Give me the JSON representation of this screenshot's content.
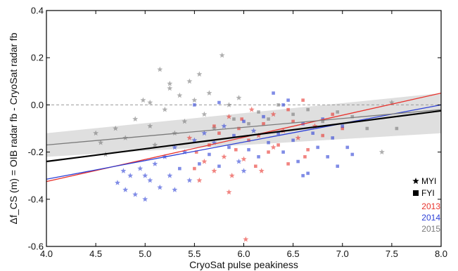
{
  "chart_data": {
    "type": "scatter",
    "xlabel": "CryoSat pulse peakiness",
    "ylabel": "Δf_CS (m) = OIB radar fb - CryoSat radar fb",
    "xlim": [
      4.0,
      8.0
    ],
    "ylim": [
      -0.6,
      0.4
    ],
    "x_ticks": [
      "4.0",
      "4.5",
      "5.0",
      "5.5",
      "6.0",
      "6.5",
      "7.0",
      "7.5",
      "8.0"
    ],
    "y_ticks": [
      "-0.6",
      "-0.4",
      "-0.2",
      "0.0",
      "0.2",
      "0.4"
    ],
    "reference_line_y": 0.0,
    "legend": {
      "placement": "lower-right",
      "marker_entries": [
        {
          "label": "MYI",
          "marker": "star-icon"
        },
        {
          "label": "FYI",
          "marker": "square-icon"
        }
      ],
      "year_entries": [
        {
          "label": "2013",
          "color": "#e8322c"
        },
        {
          "label": "2014",
          "color": "#2b3fd6"
        },
        {
          "label": "2015",
          "color": "#7a7a7a"
        }
      ]
    },
    "confidence_band": {
      "x": [
        4.0,
        8.0
      ],
      "lower": [
        -0.22,
        -0.12
      ],
      "upper": [
        -0.12,
        0.05
      ],
      "color": "#d9d9d9"
    },
    "series": [
      {
        "name": "2013",
        "color": "#e8322c",
        "fit": {
          "x": [
            4.0,
            8.0
          ],
          "y": [
            -0.325,
            0.05
          ]
        },
        "points": [
          {
            "x": 5.45,
            "y": -0.14,
            "m": "star"
          },
          {
            "x": 5.52,
            "y": -0.2,
            "m": "square"
          },
          {
            "x": 5.6,
            "y": -0.24,
            "m": "star"
          },
          {
            "x": 5.65,
            "y": -0.17,
            "m": "square"
          },
          {
            "x": 5.7,
            "y": -0.28,
            "m": "star"
          },
          {
            "x": 5.75,
            "y": -0.12,
            "m": "square"
          },
          {
            "x": 5.8,
            "y": -0.22,
            "m": "star"
          },
          {
            "x": 5.85,
            "y": -0.05,
            "m": "star"
          },
          {
            "x": 5.88,
            "y": -0.3,
            "m": "star"
          },
          {
            "x": 5.92,
            "y": -0.19,
            "m": "square"
          },
          {
            "x": 5.95,
            "y": -0.1,
            "m": "square"
          },
          {
            "x": 6.0,
            "y": -0.23,
            "m": "star"
          },
          {
            "x": 6.05,
            "y": -0.15,
            "m": "square"
          },
          {
            "x": 6.08,
            "y": -0.02,
            "m": "star"
          },
          {
            "x": 6.12,
            "y": -0.26,
            "m": "square"
          },
          {
            "x": 6.15,
            "y": -0.13,
            "m": "star"
          },
          {
            "x": 6.2,
            "y": -0.08,
            "m": "square"
          },
          {
            "x": 6.25,
            "y": -0.2,
            "m": "square"
          },
          {
            "x": 6.3,
            "y": -0.04,
            "m": "star"
          },
          {
            "x": 6.35,
            "y": -0.17,
            "m": "square"
          },
          {
            "x": 6.4,
            "y": -0.11,
            "m": "star"
          },
          {
            "x": 6.45,
            "y": -0.25,
            "m": "square"
          },
          {
            "x": 6.5,
            "y": -0.07,
            "m": "square"
          },
          {
            "x": 6.55,
            "y": -0.14,
            "m": "star"
          },
          {
            "x": 6.6,
            "y": 0.02,
            "m": "square"
          },
          {
            "x": 6.65,
            "y": -0.19,
            "m": "square"
          },
          {
            "x": 6.72,
            "y": -0.09,
            "m": "star"
          },
          {
            "x": 6.8,
            "y": -0.13,
            "m": "square"
          },
          {
            "x": 6.9,
            "y": -0.04,
            "m": "square"
          },
          {
            "x": 7.0,
            "y": -0.1,
            "m": "square"
          },
          {
            "x": 5.85,
            "y": -0.37,
            "m": "star"
          },
          {
            "x": 6.02,
            "y": -0.57,
            "m": "star"
          },
          {
            "x": 5.55,
            "y": -0.32,
            "m": "star"
          },
          {
            "x": 6.3,
            "y": -0.18,
            "m": "star"
          },
          {
            "x": 5.98,
            "y": -0.06,
            "m": "square"
          },
          {
            "x": 6.45,
            "y": -0.02,
            "m": "square"
          },
          {
            "x": 5.7,
            "y": -0.09,
            "m": "square"
          },
          {
            "x": 6.18,
            "y": -0.28,
            "m": "star"
          },
          {
            "x": 6.62,
            "y": -0.22,
            "m": "square"
          },
          {
            "x": 5.5,
            "y": -0.27,
            "m": "square"
          }
        ]
      },
      {
        "name": "2014",
        "color": "#2b3fd6",
        "fit": {
          "x": [
            4.0,
            8.0
          ],
          "y": [
            -0.315,
            0.0
          ]
        },
        "points": [
          {
            "x": 4.72,
            "y": -0.33,
            "m": "star"
          },
          {
            "x": 4.8,
            "y": -0.36,
            "m": "star"
          },
          {
            "x": 4.85,
            "y": -0.3,
            "m": "star"
          },
          {
            "x": 4.9,
            "y": -0.38,
            "m": "star"
          },
          {
            "x": 4.95,
            "y": -0.27,
            "m": "star"
          },
          {
            "x": 5.0,
            "y": -0.4,
            "m": "star"
          },
          {
            "x": 5.05,
            "y": -0.32,
            "m": "star"
          },
          {
            "x": 5.1,
            "y": -0.25,
            "m": "star"
          },
          {
            "x": 5.15,
            "y": -0.35,
            "m": "star"
          },
          {
            "x": 5.2,
            "y": -0.22,
            "m": "star"
          },
          {
            "x": 5.25,
            "y": -0.3,
            "m": "star"
          },
          {
            "x": 5.3,
            "y": -0.18,
            "m": "star"
          },
          {
            "x": 5.35,
            "y": -0.27,
            "m": "square"
          },
          {
            "x": 5.4,
            "y": -0.2,
            "m": "star"
          },
          {
            "x": 5.45,
            "y": -0.32,
            "m": "star"
          },
          {
            "x": 5.5,
            "y": -0.15,
            "m": "star"
          },
          {
            "x": 5.55,
            "y": -0.25,
            "m": "square"
          },
          {
            "x": 5.6,
            "y": -0.12,
            "m": "star"
          },
          {
            "x": 5.65,
            "y": -0.21,
            "m": "square"
          },
          {
            "x": 5.7,
            "y": -0.16,
            "m": "star"
          },
          {
            "x": 5.75,
            "y": -0.26,
            "m": "square"
          },
          {
            "x": 5.8,
            "y": -0.09,
            "m": "star"
          },
          {
            "x": 5.85,
            "y": -0.18,
            "m": "square"
          },
          {
            "x": 5.9,
            "y": -0.13,
            "m": "square"
          },
          {
            "x": 5.95,
            "y": -0.24,
            "m": "star"
          },
          {
            "x": 6.0,
            "y": -0.07,
            "m": "square"
          },
          {
            "x": 6.05,
            "y": -0.19,
            "m": "square"
          },
          {
            "x": 6.1,
            "y": -0.11,
            "m": "star"
          },
          {
            "x": 6.15,
            "y": -0.22,
            "m": "square"
          },
          {
            "x": 6.2,
            "y": -0.05,
            "m": "square"
          },
          {
            "x": 6.25,
            "y": -0.16,
            "m": "square"
          },
          {
            "x": 6.3,
            "y": 0.05,
            "m": "square"
          },
          {
            "x": 6.35,
            "y": -0.12,
            "m": "square"
          },
          {
            "x": 6.4,
            "y": -0.2,
            "m": "square"
          },
          {
            "x": 6.45,
            "y": 0.02,
            "m": "square"
          },
          {
            "x": 6.5,
            "y": -0.15,
            "m": "square"
          },
          {
            "x": 6.55,
            "y": -0.24,
            "m": "square"
          },
          {
            "x": 6.6,
            "y": -0.08,
            "m": "square"
          },
          {
            "x": 6.65,
            "y": -0.29,
            "m": "square"
          },
          {
            "x": 6.7,
            "y": -0.12,
            "m": "square"
          },
          {
            "x": 6.75,
            "y": -0.18,
            "m": "square"
          },
          {
            "x": 6.8,
            "y": -0.06,
            "m": "square"
          },
          {
            "x": 6.85,
            "y": -0.22,
            "m": "square"
          },
          {
            "x": 6.9,
            "y": -0.14,
            "m": "square"
          },
          {
            "x": 6.95,
            "y": -0.26,
            "m": "square"
          },
          {
            "x": 7.0,
            "y": -0.09,
            "m": "square"
          },
          {
            "x": 7.05,
            "y": -0.18,
            "m": "square"
          },
          {
            "x": 7.1,
            "y": -0.21,
            "m": "square"
          },
          {
            "x": 5.0,
            "y": -0.3,
            "m": "star"
          },
          {
            "x": 5.3,
            "y": -0.36,
            "m": "star"
          },
          {
            "x": 6.0,
            "y": -0.28,
            "m": "star"
          },
          {
            "x": 5.5,
            "y": 0.0,
            "m": "square"
          },
          {
            "x": 6.4,
            "y": 0.0,
            "m": "square"
          },
          {
            "x": 5.75,
            "y": 0.01,
            "m": "square"
          },
          {
            "x": 6.6,
            "y": -0.3,
            "m": "square"
          },
          {
            "x": 4.78,
            "y": -0.28,
            "m": "star"
          }
        ]
      },
      {
        "name": "2015",
        "color": "#7a7a7a",
        "fit": {
          "x": [
            4.0,
            8.0
          ],
          "y": [
            -0.17,
            -0.02
          ]
        },
        "points": [
          {
            "x": 4.5,
            "y": -0.12,
            "m": "star"
          },
          {
            "x": 4.55,
            "y": -0.16,
            "m": "star"
          },
          {
            "x": 4.6,
            "y": -0.21,
            "m": "star"
          },
          {
            "x": 4.7,
            "y": -0.1,
            "m": "star"
          },
          {
            "x": 4.8,
            "y": -0.14,
            "m": "star"
          },
          {
            "x": 4.9,
            "y": -0.06,
            "m": "star"
          },
          {
            "x": 4.98,
            "y": 0.02,
            "m": "star"
          },
          {
            "x": 5.05,
            "y": -0.09,
            "m": "star"
          },
          {
            "x": 5.1,
            "y": -0.17,
            "m": "star"
          },
          {
            "x": 5.15,
            "y": 0.15,
            "m": "star"
          },
          {
            "x": 5.2,
            "y": -0.02,
            "m": "star"
          },
          {
            "x": 5.25,
            "y": 0.07,
            "m": "star"
          },
          {
            "x": 5.3,
            "y": -0.12,
            "m": "star"
          },
          {
            "x": 5.35,
            "y": 0.04,
            "m": "star"
          },
          {
            "x": 5.4,
            "y": -0.07,
            "m": "star"
          },
          {
            "x": 5.45,
            "y": 0.1,
            "m": "star"
          },
          {
            "x": 5.5,
            "y": 0.02,
            "m": "star"
          },
          {
            "x": 5.55,
            "y": 0.13,
            "m": "star"
          },
          {
            "x": 5.6,
            "y": -0.04,
            "m": "star"
          },
          {
            "x": 5.65,
            "y": 0.05,
            "m": "star"
          },
          {
            "x": 5.7,
            "y": -0.1,
            "m": "star"
          },
          {
            "x": 5.78,
            "y": 0.21,
            "m": "star"
          },
          {
            "x": 5.85,
            "y": 0.0,
            "m": "star"
          },
          {
            "x": 5.9,
            "y": -0.06,
            "m": "square"
          },
          {
            "x": 5.95,
            "y": 0.03,
            "m": "star"
          },
          {
            "x": 6.05,
            "y": -0.08,
            "m": "square"
          },
          {
            "x": 6.15,
            "y": -0.03,
            "m": "square"
          },
          {
            "x": 6.25,
            "y": -0.06,
            "m": "square"
          },
          {
            "x": 6.35,
            "y": 0.0,
            "m": "square"
          },
          {
            "x": 6.5,
            "y": -0.04,
            "m": "square"
          },
          {
            "x": 6.65,
            "y": -0.02,
            "m": "square"
          },
          {
            "x": 6.8,
            "y": -0.07,
            "m": "square"
          },
          {
            "x": 6.95,
            "y": -0.03,
            "m": "square"
          },
          {
            "x": 7.1,
            "y": -0.05,
            "m": "square"
          },
          {
            "x": 7.25,
            "y": -0.1,
            "m": "square"
          },
          {
            "x": 7.5,
            "y": 0.01,
            "m": "star"
          },
          {
            "x": 7.55,
            "y": -0.1,
            "m": "square"
          },
          {
            "x": 7.4,
            "y": -0.2,
            "m": "star"
          },
          {
            "x": 5.05,
            "y": 0.01,
            "m": "star"
          },
          {
            "x": 5.25,
            "y": 0.09,
            "m": "star"
          }
        ]
      }
    ],
    "combined_fit": {
      "color": "#000000",
      "x": [
        4.0,
        8.0
      ],
      "y": [
        -0.24,
        -0.025
      ]
    }
  }
}
